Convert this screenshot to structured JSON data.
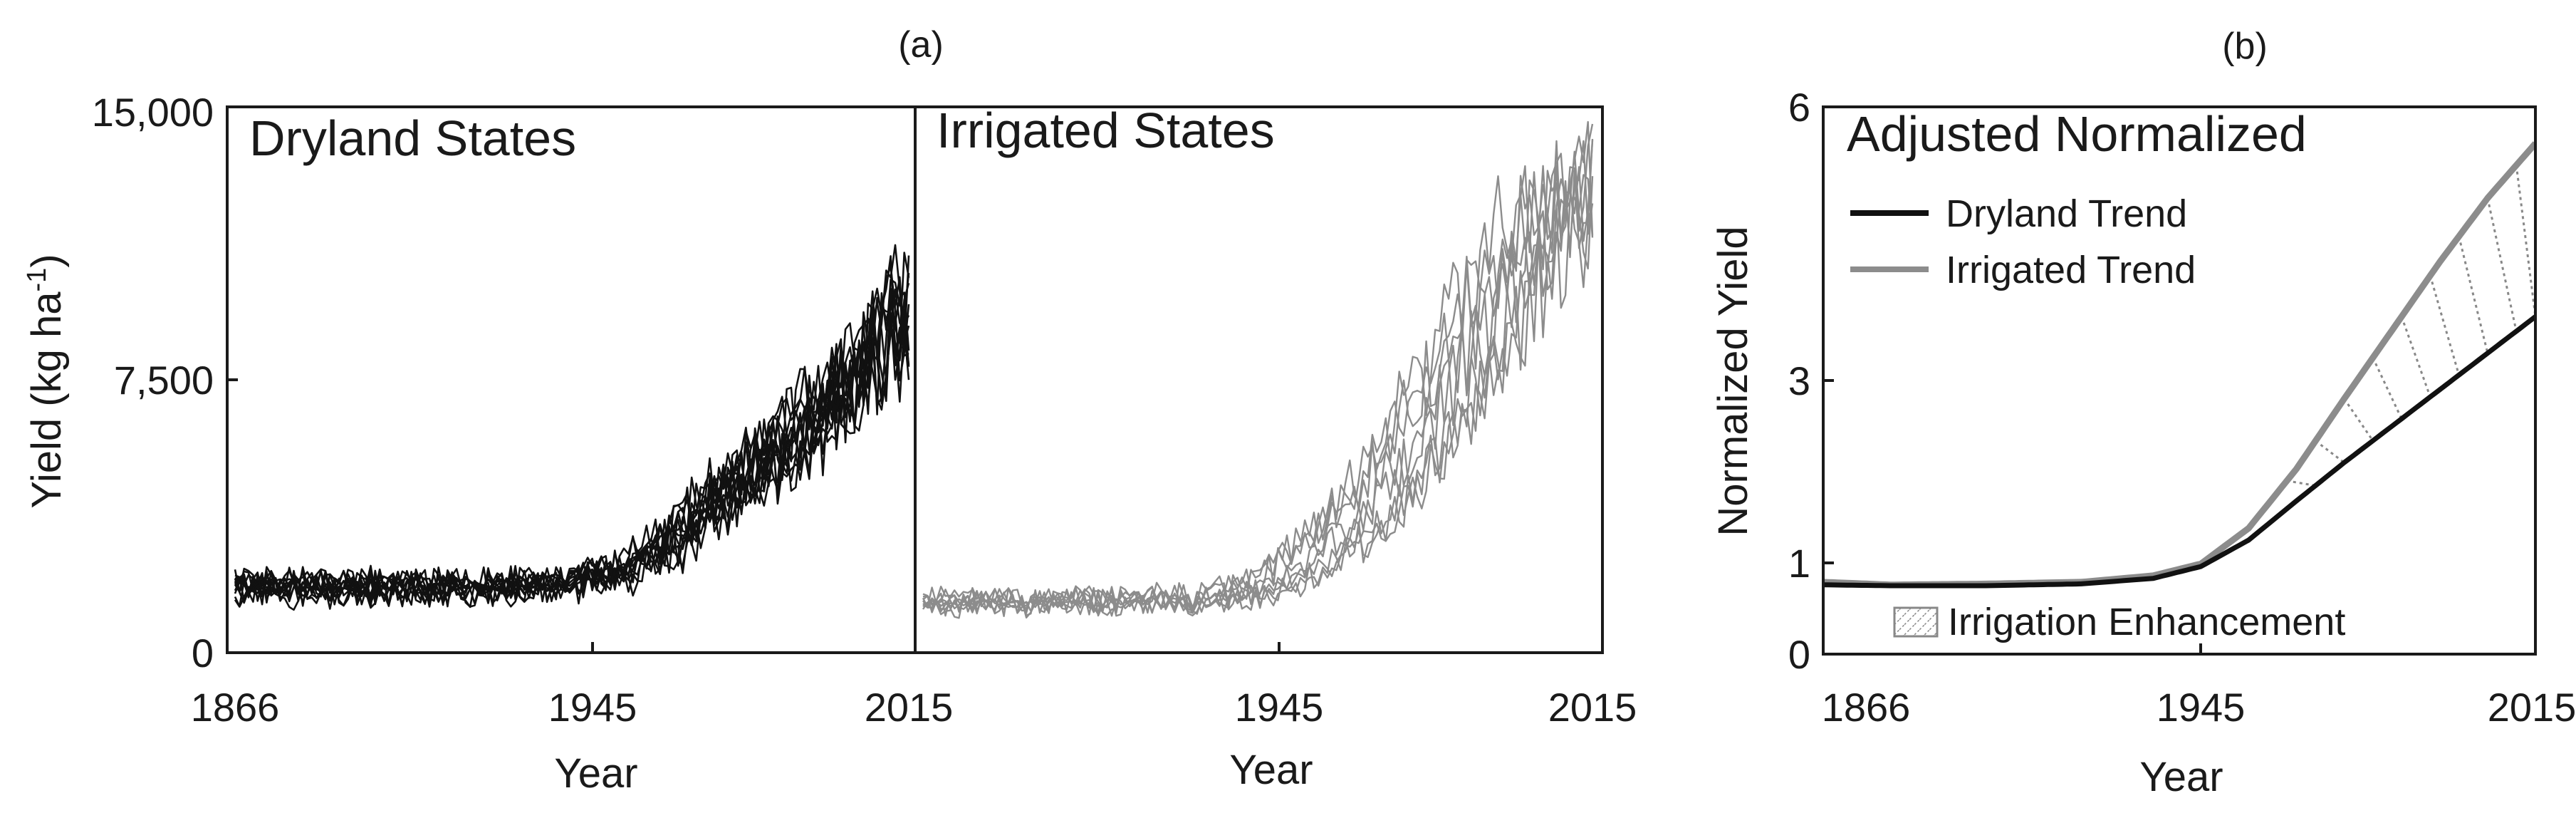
{
  "colors": {
    "dryland": "#111111",
    "irrigated": "#8c8c8c",
    "axis": "#1a1a1a",
    "enhancement_hatch": "#888888"
  },
  "chart_data": [
    {
      "type": "line",
      "panel_label": "(a)",
      "subplots": [
        {
          "title": "Dryland States",
          "color": "#111111",
          "ylabel": "Yield (kg ha-1)",
          "ylabel_main": "Yield (kg ha",
          "ylabel_sup": "-1",
          "ylabel_tail": ")",
          "xlabel": "Year",
          "xlim": [
            1866,
            2015
          ],
          "ylim": [
            0,
            15000
          ],
          "xticks": [
            "1866",
            "1945",
            "2015"
          ],
          "xtick_values": [
            1866,
            1945,
            2015
          ],
          "yticks": [
            "0",
            "7,500",
            "15,000"
          ],
          "ytick_values": [
            0,
            7500,
            15000
          ],
          "series_count": 12,
          "shared_trend": {
            "x": [
              1866,
              1890,
              1920,
              1940,
              1950,
              1960,
              1970,
              1980,
              1990,
              2000,
              2010,
              2015
            ],
            "y": [
              1900,
              1900,
              1900,
              2000,
              2300,
              3000,
              4200,
              5200,
              6300,
              7600,
              9000,
              9800
            ]
          }
        },
        {
          "title": "Irrigated States",
          "color": "#8c8c8c",
          "xlabel": "Year",
          "xlim": [
            1866,
            2015
          ],
          "ylim": [
            0,
            15000
          ],
          "xticks": [
            "1945",
            "2015"
          ],
          "xtick_values": [
            1945,
            2015
          ],
          "series_count": 8,
          "shared_trend": {
            "x": [
              1866,
              1900,
              1930,
              1940,
              1950,
              1960,
              1970,
              1980,
              1990,
              2000,
              2010,
              2015
            ],
            "y": [
              1300,
              1300,
              1400,
              1600,
              2200,
              3200,
              4500,
              6200,
              8300,
              10200,
              11500,
              12000
            ]
          }
        }
      ]
    },
    {
      "type": "line",
      "panel_label": "(b)",
      "title": "Adjusted Normalized",
      "xlabel": "Year",
      "ylabel": "Normalized Yield",
      "xlim": [
        1866,
        2015
      ],
      "ylim": [
        0,
        6
      ],
      "xticks": [
        "1866",
        "1945",
        "2015"
      ],
      "xtick_values": [
        1866,
        1945,
        2015
      ],
      "yticks": [
        "0",
        "1",
        "3",
        "6"
      ],
      "ytick_values": [
        0,
        1,
        3,
        6
      ],
      "series": [
        {
          "name": "Dryland Trend",
          "color": "#111111",
          "x": [
            1866,
            1880,
            1900,
            1920,
            1935,
            1945,
            1955,
            1965,
            1975,
            1985,
            1995,
            2005,
            2015
          ],
          "y": [
            0.76,
            0.75,
            0.75,
            0.77,
            0.83,
            0.96,
            1.25,
            1.68,
            2.1,
            2.5,
            2.9,
            3.3,
            3.7
          ]
        },
        {
          "name": "Irrigated Trend",
          "color": "#8c8c8c",
          "x": [
            1866,
            1880,
            1900,
            1920,
            1935,
            1945,
            1955,
            1965,
            1975,
            1985,
            1995,
            2005,
            2015
          ],
          "y": [
            0.79,
            0.76,
            0.77,
            0.79,
            0.86,
            0.99,
            1.38,
            2.03,
            2.8,
            3.55,
            4.3,
            5.0,
            5.6
          ]
        }
      ],
      "enhancement_label": "Irrigation Enhancement",
      "legend_position": "top-left"
    }
  ]
}
